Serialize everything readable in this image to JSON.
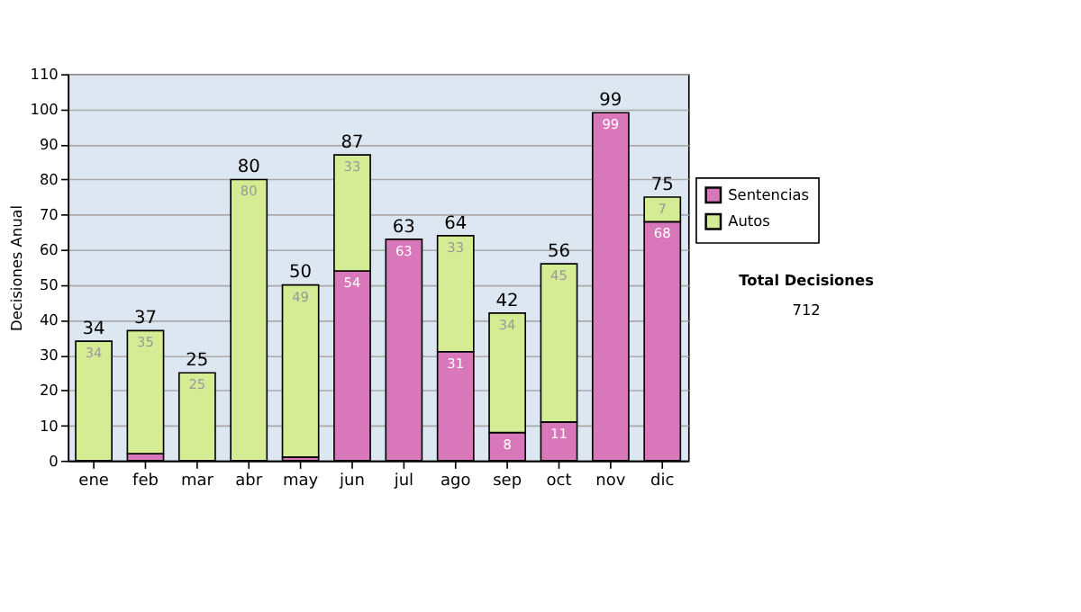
{
  "chart_data": {
    "type": "bar",
    "stacked": true,
    "ylabel": "Decisiones Anual",
    "categories": [
      "ene",
      "feb",
      "mar",
      "abr",
      "may",
      "jun",
      "jul",
      "ago",
      "sep",
      "oct",
      "nov",
      "dic"
    ],
    "series": [
      {
        "name": "Sentencias",
        "color": "#d977bb",
        "values": [
          0,
          2,
          0,
          0,
          1,
          54,
          63,
          31,
          8,
          11,
          99,
          68
        ],
        "value_labels": [
          null,
          null,
          null,
          null,
          null,
          "54",
          "63",
          "31",
          "8",
          "11",
          "99",
          "68"
        ]
      },
      {
        "name": "Autos",
        "color": "#d6ec94",
        "values": [
          34,
          35,
          25,
          80,
          49,
          33,
          0,
          33,
          34,
          45,
          0,
          7
        ],
        "value_labels": [
          "34",
          "35",
          "25",
          "80",
          "49",
          "33",
          null,
          "33",
          "34",
          "45",
          null,
          "7"
        ]
      }
    ],
    "totals": [
      "34",
      "37",
      "25",
      "80",
      "50",
      "87",
      "63",
      "64",
      "42",
      "56",
      "99",
      "75"
    ],
    "ylim": [
      0,
      110
    ],
    "yticks": [
      0,
      10,
      20,
      30,
      40,
      50,
      60,
      70,
      80,
      90,
      100,
      110
    ],
    "grid": "y",
    "legend": "right",
    "annotations": [
      "Total Decisiones",
      "712"
    ]
  }
}
